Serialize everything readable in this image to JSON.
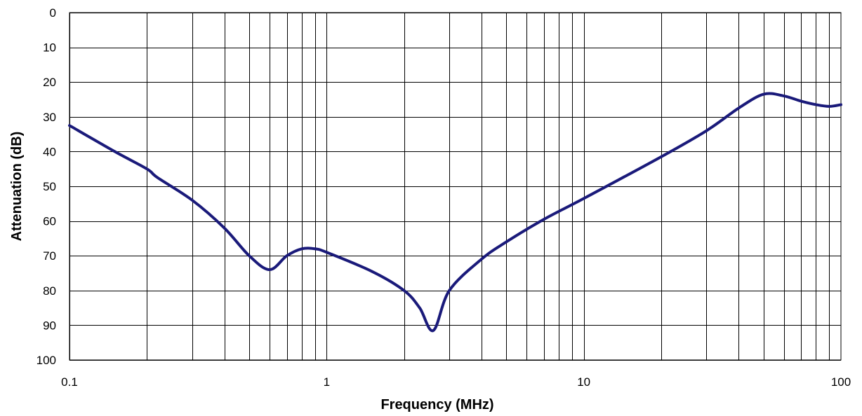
{
  "chart_data": {
    "type": "line",
    "x_scale": "log",
    "y_inverted": true,
    "xlabel": "Frequency (MHz)",
    "ylabel": "Attenuation (dB)",
    "xlim": [
      0.1,
      100
    ],
    "ylim": [
      0,
      100
    ],
    "grid": true,
    "x_tick_labels": [
      "0.1",
      "1",
      "10",
      "100"
    ],
    "x_tick_values": [
      0.1,
      1,
      10,
      100
    ],
    "y_tick_labels": [
      "0",
      "10",
      "20",
      "30",
      "40",
      "50",
      "60",
      "70",
      "80",
      "90",
      "100"
    ],
    "y_tick_values": [
      0,
      10,
      20,
      30,
      40,
      50,
      60,
      70,
      80,
      90,
      100
    ],
    "series": [
      {
        "color": "#1a1a7a",
        "x": [
          0.1,
          0.15,
          0.2,
          0.22,
          0.3,
          0.4,
          0.5,
          0.6,
          0.7,
          0.8,
          0.9,
          1.0,
          1.5,
          2.0,
          2.3,
          2.6,
          3.0,
          4.0,
          5.0,
          7.0,
          10,
          20,
          30,
          40,
          50,
          60,
          70,
          80,
          90,
          100
        ],
        "y": [
          32.5,
          40,
          45,
          47.5,
          54,
          62,
          70,
          74,
          70,
          68,
          68,
          69,
          74.5,
          80,
          85,
          91.5,
          80,
          71,
          66,
          59.5,
          53.5,
          41.5,
          34,
          27.5,
          23.5,
          24,
          25.5,
          26.5,
          27,
          26.5
        ]
      }
    ]
  }
}
